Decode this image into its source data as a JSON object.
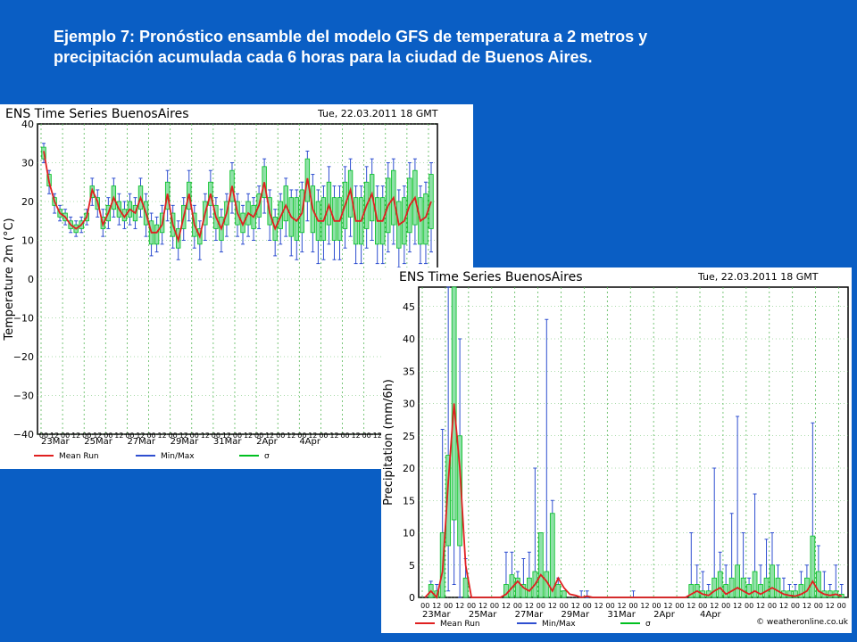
{
  "slide": {
    "title_line1": "Ejemplo 7: Pronóstico ensamble del modelo GFS de temperatura a 2 metros y",
    "title_line2": "precipitación acumulada cada 6 horas para la ciudad de Buenos Aires."
  },
  "colors": {
    "background": "#0a5ec4",
    "mean_run": "#e02020",
    "min_max": "#2f4fd0",
    "sigma": "#00c020",
    "box_fill": "#8fe0a8",
    "grid": "#58b858"
  },
  "chart_data": [
    {
      "type": "box",
      "title": "ENS Time Series BuenosAires",
      "run_label": "Tue, 22.03.2011 18 GMT",
      "ylabel": "Temperature 2m (°C)",
      "ylim": [
        -40,
        40
      ],
      "yticks": [
        40,
        30,
        20,
        10,
        0,
        -10,
        -20,
        -30,
        -40
      ],
      "hour_labels": [
        "00",
        "12"
      ],
      "date_labels": [
        "23Mar",
        "25Mar",
        "27Mar",
        "29Mar",
        "31Mar",
        "2Apr",
        "4Apr"
      ],
      "legend": [
        "Mean Run",
        "Min/Max",
        "σ"
      ],
      "mean": [
        33,
        25,
        20,
        17,
        16,
        14,
        13,
        14,
        16,
        23,
        20,
        14,
        17,
        21,
        18,
        16,
        18,
        17,
        21,
        17,
        12,
        12,
        14,
        22,
        14,
        10,
        16,
        22,
        14,
        11,
        17,
        22,
        16,
        13,
        17,
        24,
        17,
        14,
        17,
        16,
        19,
        25,
        17,
        13,
        16,
        19,
        16,
        15,
        17,
        26,
        18,
        15,
        15,
        19,
        15,
        15,
        19,
        23,
        15,
        15,
        19,
        22,
        15,
        15,
        19,
        21,
        14,
        15,
        19,
        21,
        15,
        16,
        20
      ],
      "sigma_low": [
        31,
        24,
        19,
        16,
        15,
        13,
        12,
        13,
        15,
        21,
        18,
        13,
        15,
        18,
        16,
        15,
        16,
        15,
        18,
        14,
        9,
        9,
        12,
        18,
        11,
        8,
        13,
        18,
        11,
        9,
        14,
        19,
        13,
        10,
        14,
        20,
        14,
        12,
        14,
        13,
        16,
        21,
        14,
        10,
        13,
        15,
        11,
        10,
        12,
        20,
        12,
        10,
        10,
        14,
        10,
        10,
        13,
        16,
        9,
        9,
        13,
        15,
        9,
        9,
        12,
        14,
        8,
        9,
        12,
        14,
        9,
        9,
        13
      ],
      "sigma_high": [
        34,
        27,
        21,
        18,
        17,
        15,
        14,
        15,
        17,
        24,
        21,
        16,
        19,
        24,
        20,
        18,
        20,
        19,
        24,
        20,
        15,
        14,
        17,
        25,
        17,
        13,
        19,
        25,
        17,
        13,
        20,
        25,
        19,
        16,
        20,
        28,
        20,
        17,
        20,
        19,
        22,
        29,
        21,
        16,
        20,
        24,
        21,
        21,
        23,
        31,
        24,
        20,
        21,
        25,
        21,
        21,
        25,
        28,
        21,
        21,
        25,
        27,
        21,
        21,
        26,
        28,
        20,
        21,
        26,
        28,
        21,
        22,
        27
      ],
      "min": [
        30,
        22,
        17,
        15,
        14,
        12,
        11,
        12,
        14,
        19,
        16,
        11,
        13,
        16,
        14,
        13,
        14,
        13,
        16,
        11,
        6,
        7,
        9,
        15,
        8,
        5,
        10,
        15,
        8,
        5,
        10,
        16,
        10,
        7,
        11,
        17,
        11,
        9,
        11,
        10,
        13,
        17,
        10,
        6,
        9,
        11,
        6,
        5,
        7,
        15,
        7,
        4,
        5,
        9,
        5,
        5,
        8,
        11,
        4,
        4,
        8,
        10,
        4,
        4,
        7,
        9,
        3,
        4,
        7,
        9,
        4,
        4,
        7
      ],
      "max": [
        35,
        28,
        22,
        19,
        18,
        16,
        15,
        16,
        18,
        26,
        23,
        18,
        21,
        26,
        22,
        20,
        22,
        21,
        26,
        22,
        17,
        16,
        19,
        28,
        19,
        15,
        21,
        28,
        19,
        15,
        22,
        28,
        21,
        18,
        22,
        30,
        22,
        19,
        22,
        21,
        24,
        31,
        23,
        18,
        22,
        26,
        23,
        23,
        25,
        33,
        27,
        23,
        24,
        29,
        24,
        24,
        29,
        31,
        24,
        24,
        29,
        31,
        24,
        24,
        30,
        31,
        23,
        24,
        30,
        31,
        24,
        25,
        30
      ]
    },
    {
      "type": "box",
      "title": "ENS Time Series BuenosAires",
      "run_label": "Tue, 22.03.2011 18 GMT",
      "ylabel": "Precipitation (mm/6h)",
      "ylim": [
        0,
        48
      ],
      "yticks": [
        45,
        40,
        35,
        30,
        25,
        20,
        15,
        10,
        5,
        0
      ],
      "hour_labels": [
        "00",
        "12"
      ],
      "date_labels": [
        "23Mar",
        "25Mar",
        "27Mar",
        "29Mar",
        "31Mar",
        "2Apr",
        "4Apr"
      ],
      "legend": [
        "Mean Run",
        "Min/Max",
        "σ"
      ],
      "footer_credit": "© weatheronline.co.uk",
      "mean": [
        0,
        1,
        0,
        4,
        18,
        30,
        20,
        5,
        0,
        0,
        0,
        0,
        0,
        0,
        0.5,
        1.5,
        2.5,
        1.5,
        1,
        2,
        3.5,
        2.5,
        1,
        3,
        1.5,
        0.5,
        0.3,
        0,
        0.2,
        0,
        0,
        0,
        0,
        0,
        0,
        0,
        0,
        0,
        0,
        0,
        0,
        0,
        0,
        0,
        0,
        0,
        0.5,
        1,
        0.5,
        0.3,
        1,
        1.5,
        0.5,
        1,
        1.5,
        1,
        0.5,
        1,
        0.5,
        1,
        1.5,
        1,
        0.5,
        0.3,
        0.2,
        0.5,
        1,
        2.5,
        1,
        0.5,
        0.3,
        0.5,
        0.2
      ],
      "sigma_low": [
        0,
        0,
        0,
        0,
        8,
        12,
        8,
        0,
        0,
        0,
        0,
        0,
        0,
        0,
        0,
        0,
        0,
        0,
        0,
        0,
        0,
        0,
        0,
        0,
        0,
        0,
        0,
        0,
        0,
        0,
        0,
        0,
        0,
        0,
        0,
        0,
        0,
        0,
        0,
        0,
        0,
        0,
        0,
        0,
        0,
        0,
        0,
        0,
        0,
        0,
        0,
        0,
        0,
        0,
        0,
        0,
        0,
        0,
        0,
        0,
        0,
        0,
        0,
        0,
        0,
        0,
        0,
        0,
        0,
        0,
        0,
        0,
        0
      ],
      "sigma_high": [
        0,
        2,
        1,
        10,
        22,
        48,
        25,
        3,
        0,
        0,
        0,
        0,
        0,
        0,
        2,
        3.5,
        3,
        2,
        3,
        4,
        10,
        4,
        13,
        2,
        1,
        0,
        0,
        0,
        0,
        0,
        0,
        0,
        0,
        0,
        0,
        0,
        0,
        0,
        0,
        0,
        0,
        0,
        0,
        0,
        0,
        0,
        2,
        2,
        1,
        1,
        3,
        4,
        2,
        3,
        5,
        3,
        2,
        4,
        2,
        3,
        5,
        3,
        1,
        1,
        1,
        2,
        3,
        9.5,
        4,
        1,
        1,
        1,
        0.5
      ],
      "min": [
        0,
        0,
        0,
        0,
        1,
        2,
        0,
        0,
        0,
        0,
        0,
        0,
        0,
        0,
        0,
        0,
        0,
        0,
        0,
        0,
        0,
        0,
        0,
        0,
        0,
        0,
        0,
        0,
        0,
        0,
        0,
        0,
        0,
        0,
        0,
        0,
        0,
        0,
        0,
        0,
        0,
        0,
        0,
        0,
        0,
        0,
        0,
        0,
        0,
        0,
        0,
        0,
        0,
        0,
        0,
        0,
        0,
        0,
        0,
        0,
        0,
        0,
        0,
        0,
        0,
        0,
        0,
        0,
        0,
        0,
        0,
        0,
        0
      ],
      "max": [
        0,
        2.5,
        2,
        26,
        48,
        48,
        40,
        6,
        0,
        0,
        0,
        0,
        0,
        0,
        7,
        7,
        4,
        6,
        7,
        20,
        10,
        43,
        15,
        3,
        1,
        0,
        0,
        1,
        1,
        0,
        0,
        0,
        0,
        0,
        0,
        0,
        1,
        0,
        0,
        0,
        0,
        0,
        0,
        0,
        0,
        0,
        10,
        5,
        4,
        2,
        20,
        7,
        5,
        13,
        28,
        10,
        3,
        16,
        5,
        9,
        10,
        5,
        3,
        2,
        2,
        4,
        5,
        27,
        8,
        4,
        2,
        5,
        2
      ]
    }
  ]
}
